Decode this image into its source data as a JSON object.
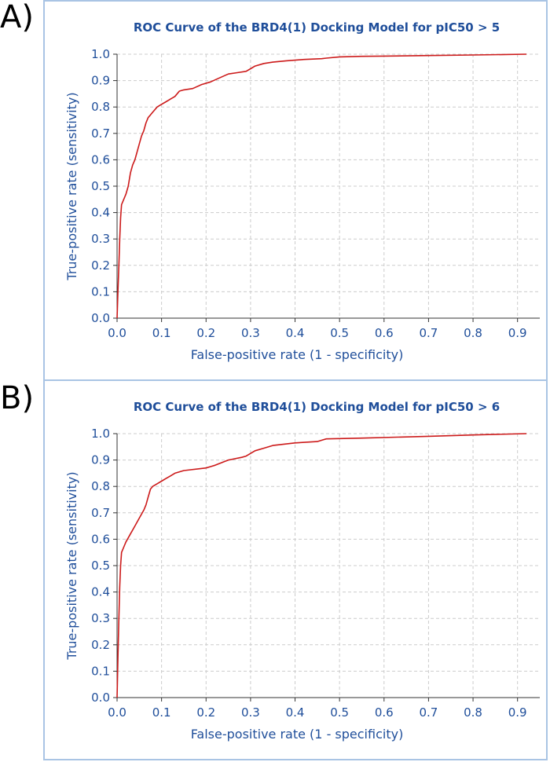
{
  "panels": [
    {
      "letter": "A)",
      "chart_data": {
        "type": "line",
        "title": "ROC Curve of the BRD4(1) Docking Model for pIC50 > 5",
        "xlabel": "False-positive rate (1 - specificity)",
        "ylabel": "True-positive rate (sensitivity)",
        "xlim": [
          0,
          0.95
        ],
        "ylim": [
          0,
          1.0
        ],
        "xticks": [
          "0.0",
          "0.1",
          "0.2",
          "0.3",
          "0.4",
          "0.5",
          "0.6",
          "0.7",
          "0.8",
          "0.9"
        ],
        "yticks": [
          "0.0",
          "0.1",
          "0.2",
          "0.3",
          "0.4",
          "0.5",
          "0.6",
          "0.7",
          "0.8",
          "0.9",
          "1.0"
        ],
        "grid": true,
        "line_color": "#cc1a1a",
        "series": [
          {
            "x": [
              0,
              0.002,
              0.004,
              0.006,
              0.008,
              0.01,
              0.015,
              0.02,
              0.025,
              0.03,
              0.035,
              0.04,
              0.045,
              0.05,
              0.055,
              0.06,
              0.065,
              0.07,
              0.075,
              0.08,
              0.085,
              0.09,
              0.1,
              0.11,
              0.12,
              0.13,
              0.14,
              0.15,
              0.17,
              0.19,
              0.21,
              0.23,
              0.25,
              0.27,
              0.29,
              0.3,
              0.31,
              0.33,
              0.35,
              0.38,
              0.42,
              0.46,
              0.47,
              0.5,
              0.55,
              0.6,
              0.7,
              0.8,
              0.92
            ],
            "y": [
              0,
              0.1,
              0.2,
              0.3,
              0.38,
              0.43,
              0.45,
              0.47,
              0.5,
              0.55,
              0.58,
              0.6,
              0.63,
              0.66,
              0.69,
              0.71,
              0.74,
              0.76,
              0.77,
              0.78,
              0.79,
              0.8,
              0.81,
              0.82,
              0.83,
              0.84,
              0.86,
              0.865,
              0.87,
              0.885,
              0.895,
              0.91,
              0.925,
              0.93,
              0.935,
              0.945,
              0.955,
              0.965,
              0.97,
              0.975,
              0.98,
              0.983,
              0.985,
              0.99,
              0.992,
              0.993,
              0.995,
              0.997,
              1.0
            ]
          }
        ]
      }
    },
    {
      "letter": "B)",
      "chart_data": {
        "type": "line",
        "title": "ROC Curve of the BRD4(1) Docking Model for pIC50 > 6",
        "xlabel": "False-positive rate (1 - specificity)",
        "ylabel": "True-positive rate (sensitivity)",
        "xlim": [
          0,
          0.95
        ],
        "ylim": [
          0,
          1.0
        ],
        "xticks": [
          "0.0",
          "0.1",
          "0.2",
          "0.3",
          "0.4",
          "0.5",
          "0.6",
          "0.7",
          "0.8",
          "0.9"
        ],
        "yticks": [
          "0.0",
          "0.1",
          "0.2",
          "0.3",
          "0.4",
          "0.5",
          "0.6",
          "0.7",
          "0.8",
          "0.9",
          "1.0"
        ],
        "grid": true,
        "line_color": "#cc1a1a",
        "series": [
          {
            "x": [
              0,
              0.002,
              0.004,
              0.006,
              0.008,
              0.01,
              0.015,
              0.02,
              0.03,
              0.04,
              0.05,
              0.06,
              0.065,
              0.07,
              0.075,
              0.08,
              0.09,
              0.1,
              0.11,
              0.12,
              0.13,
              0.15,
              0.2,
              0.21,
              0.22,
              0.25,
              0.28,
              0.29,
              0.3,
              0.31,
              0.33,
              0.35,
              0.4,
              0.45,
              0.46,
              0.47,
              0.55,
              0.7,
              0.8,
              0.92
            ],
            "y": [
              0,
              0.15,
              0.3,
              0.42,
              0.5,
              0.55,
              0.57,
              0.59,
              0.62,
              0.65,
              0.68,
              0.71,
              0.73,
              0.76,
              0.79,
              0.8,
              0.81,
              0.82,
              0.83,
              0.84,
              0.85,
              0.86,
              0.87,
              0.875,
              0.88,
              0.9,
              0.91,
              0.915,
              0.925,
              0.935,
              0.945,
              0.955,
              0.965,
              0.97,
              0.975,
              0.98,
              0.983,
              0.99,
              0.995,
              1.0
            ]
          }
        ]
      }
    }
  ],
  "colors": {
    "title": "#1f4e9a",
    "axis_text": "#1f4e9a",
    "grid": "#cccccc",
    "axis": "#333333",
    "border": "#a9c4e4"
  }
}
